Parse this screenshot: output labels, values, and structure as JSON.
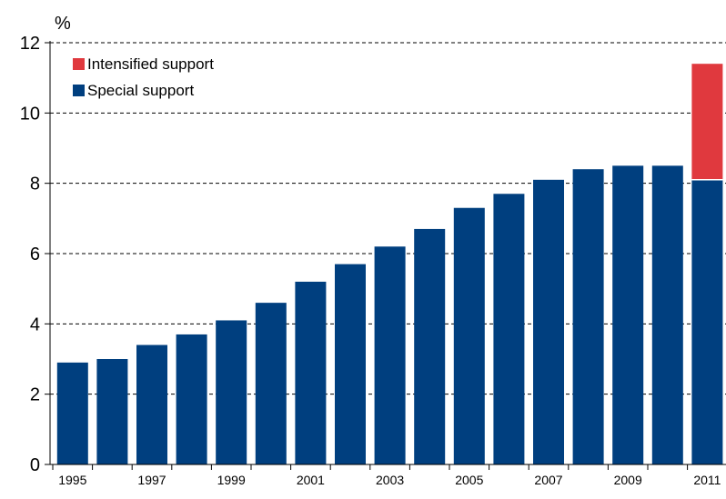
{
  "chart_data": {
    "type": "bar",
    "stacked": true,
    "unit": "%",
    "categories": [
      "1995",
      "1996",
      "1997",
      "1998",
      "1999",
      "2000",
      "2001",
      "2002",
      "2003",
      "2004",
      "2005",
      "2006",
      "2007",
      "2008",
      "2009",
      "2010",
      "2011"
    ],
    "x_tick_labels": [
      "1995",
      "1997",
      "1999",
      "2001",
      "2003",
      "2005",
      "2007",
      "2009",
      "2011"
    ],
    "series": [
      {
        "name": "Special support",
        "color": "#003f7f",
        "values": [
          2.9,
          3.0,
          3.4,
          3.7,
          4.1,
          4.6,
          5.2,
          5.7,
          6.2,
          6.7,
          7.3,
          7.7,
          8.1,
          8.4,
          8.5,
          8.5,
          8.1
        ]
      },
      {
        "name": "Intensified support",
        "color": "#e0393e",
        "values": [
          0,
          0,
          0,
          0,
          0,
          0,
          0,
          0,
          0,
          0,
          0,
          0,
          0,
          0,
          0,
          0,
          3.3
        ]
      }
    ],
    "ylim": [
      0,
      12
    ],
    "y_ticks": [
      0,
      2,
      4,
      6,
      8,
      10,
      12
    ],
    "grid": "horizontal dashed",
    "legend_placement": "top-left",
    "legend_order": [
      "Intensified support",
      "Special support"
    ],
    "title": "",
    "xlabel": "",
    "ylabel": ""
  }
}
